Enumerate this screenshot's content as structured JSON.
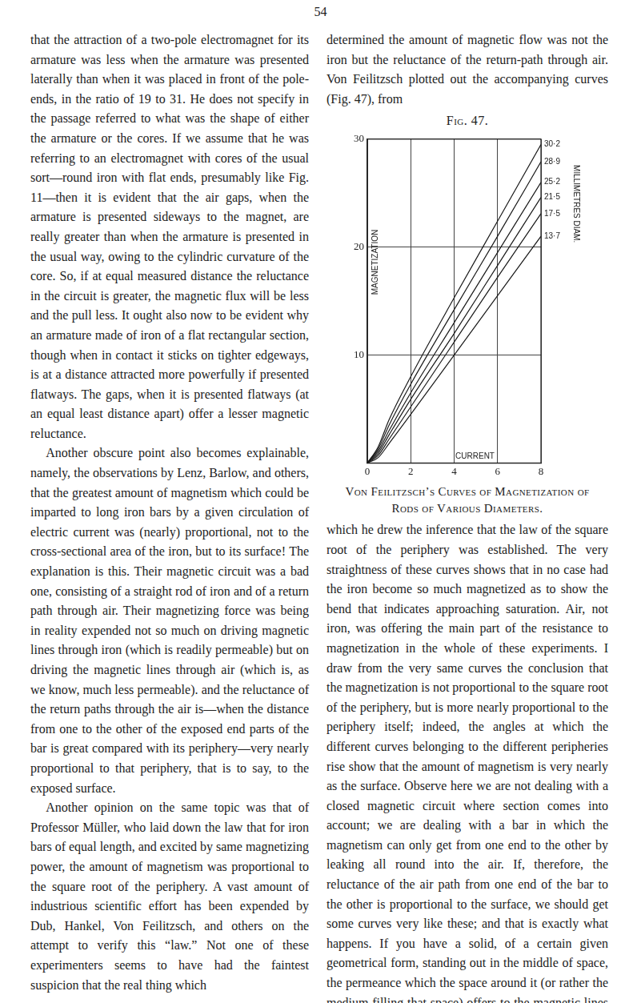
{
  "page_number": "54",
  "left_column": [
    "that the attraction of a two-pole electromagnet for its armature was less when the armature was presented laterally than when it was placed in front of the pole-ends, in the ratio of 19 to 31. He does not specify in the passage referred to what was the shape of either the armature or the cores. If we assume that he was referring to an electromagnet with cores of the usual sort—round iron with flat ends, presumably like Fig. 11—then it is evident that the air gaps, when the armature is presented sideways to the magnet, are really greater than when the armature is presented in the usual way, owing to the cylindric curvature of the core. So, if at equal measured distance the reluctance in the circuit is greater, the magnetic flux will be less and the pull less. It ought also now to be evident why an armature made of iron of a flat rectangular section, though when in contact it sticks on tighter edgeways, is at a distance attracted more powerfully if presented flatways. The gaps, when it is presented flatways (at an equal least distance apart) offer a lesser magnetic reluctance.",
    "Another obscure point also becomes explainable, namely, the observations by Lenz, Barlow, and others, that the greatest amount of magnetism which could be imparted to long iron bars by a given circulation of electric current was (nearly) proportional, not to the cross-sectional area of the iron, but to its surface! The explanation is this. Their magnetic circuit was a bad one, consisting of a straight rod of iron and of a return path through air. Their magnetizing force was being in reality expended not so much on driving magnetic lines through iron (which is readily permeable) but on driving the magnetic lines through air (which is, as we know, much less permeable). and the reluctance of the return paths through the air is—when the distance from one to the other of the exposed end parts of the bar is great compared with its periphery—very nearly proportional to that periphery, that is to say, to the exposed surface.",
    "Another opinion on the same topic was that of Professor Müller, who laid down the law that for iron bars of equal length, and excited by same magnetizing power, the amount of magnetism was proportional to the square root of the periphery. A vast amount of industrious scientific effort has been expended by Dub, Hankel, Von Feilitzsch, and others on the attempt to verify this “law.” Not one of these experimenters seems to have had the faintest suspicion that the real thing which"
  ],
  "right_column": {
    "before": "determined the amount of magnetic flow was not the iron but the reluctance of the return-path through air. Von Feilitzsch plotted out the accompanying curves (Fig. 47), from",
    "figure_label": "Fig. 47.",
    "caption": "Von Feilitzsch’s Curves of Magnetization of Rods of Various Diameters.",
    "after": "which he drew the inference that the law of the square root of the periphery was established. The very straightness of these curves shows that in no case had the iron become so much magnetized as to show the bend that indicates approaching saturation. Air, not iron, was offering the main part of the resistance to magnetization in the whole of these experiments. I draw from the very same curves the conclusion that the magnetization is not proportional to the square root of the periphery, but is more nearly proportional to the periphery itself; indeed, the angles at which the different curves belonging to the different peripheries rise show that the amount of magnetism is very nearly as the surface. Observe here we are not dealing with a closed magnetic circuit where section comes into account; we are dealing with a bar in which the magnetism can only get from one end to the other by leaking all round into the air. If, therefore, the reluctance of the air path from one end of the bar to the other is proportional to the surface, we should get some curves very like these; and that is exactly what happens. If you have a solid, of a certain given geometrical form, standing out in the middle of space, the permeance which the space around it (or rather the medium filling that space) offers to the magnetic lines flowing through it, is practically proportional to the surface. It is distinctly so for similar"
  },
  "chart_data": {
    "type": "line",
    "x_label": "CURRENT",
    "y_label": "MAGNETIZATION",
    "annotation": "MILLIMETRES DIAM.",
    "x": [
      0,
      0.5,
      1,
      2,
      4,
      6,
      8
    ],
    "series": [
      {
        "name": "30·2",
        "color": "#1a1a1a",
        "values": [
          0,
          1.5,
          4,
          8,
          15.3,
          22.4,
          29.5
        ]
      },
      {
        "name": "28·9",
        "color": "#1a1a1a",
        "values": [
          0,
          1.3,
          3.5,
          7.3,
          14.2,
          21,
          27.9
        ]
      },
      {
        "name": "25·2",
        "color": "#1a1a1a",
        "values": [
          0,
          1.1,
          3,
          6.5,
          13,
          19.5,
          26
        ]
      },
      {
        "name": "21·5",
        "color": "#1a1a1a",
        "values": [
          0,
          0.9,
          2.6,
          5.9,
          12,
          18.3,
          24.6
        ]
      },
      {
        "name": "17·5",
        "color": "#1a1a1a",
        "values": [
          0,
          0.7,
          2.2,
          5.2,
          11.2,
          17.2,
          23.1
        ]
      },
      {
        "name": "13·7",
        "color": "#1a1a1a",
        "values": [
          0,
          0.5,
          1.8,
          4.5,
          10,
          15.5,
          21
        ]
      }
    ],
    "xlim": [
      0,
      8
    ],
    "xticks": [
      0,
      2,
      4,
      6,
      8
    ],
    "ylim": [
      0,
      30
    ],
    "yticks": [
      10,
      20,
      30
    ],
    "grid": true
  }
}
